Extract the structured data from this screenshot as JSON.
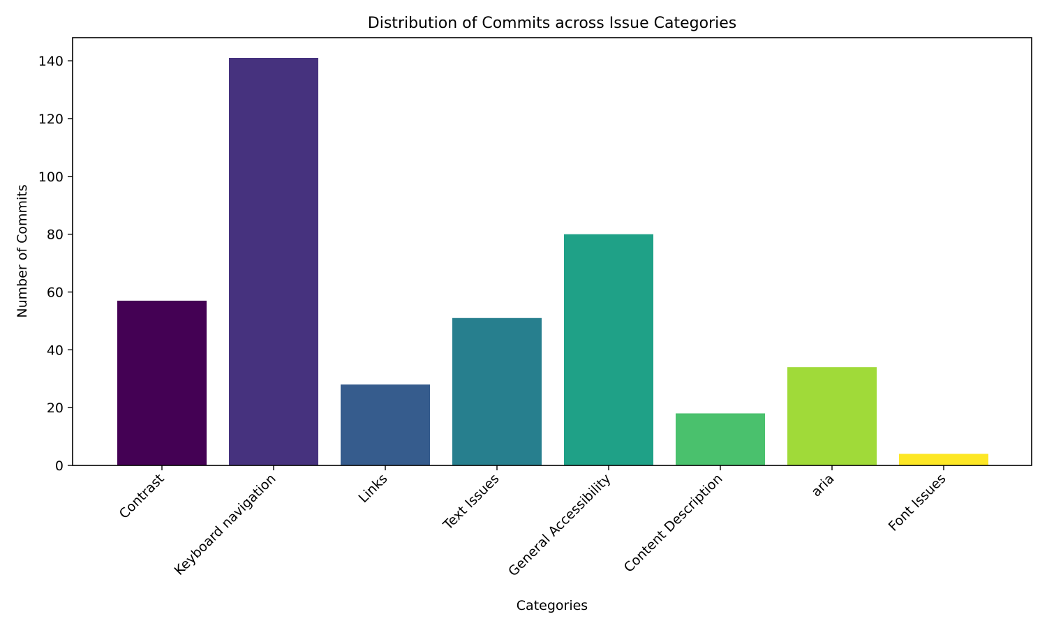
{
  "chart_data": {
    "type": "bar",
    "title": "Distribution of Commits across Issue Categories",
    "xlabel": "Categories",
    "ylabel": "Number of Commits",
    "categories": [
      "Contrast",
      "Keyboard navigation",
      "Links",
      "Text Issues",
      "General Accessibility",
      "Content Description",
      "aria",
      "Font Issues"
    ],
    "values": [
      57,
      141,
      28,
      51,
      80,
      18,
      34,
      4
    ],
    "colors": [
      "#440154",
      "#46327e",
      "#365c8d",
      "#277f8e",
      "#1fa187",
      "#4ac16d",
      "#a0da39",
      "#fde725"
    ],
    "ylim": [
      0,
      148
    ],
    "yticks": [
      0,
      20,
      40,
      60,
      80,
      100,
      120,
      140
    ],
    "grid": false,
    "legend": "none"
  }
}
